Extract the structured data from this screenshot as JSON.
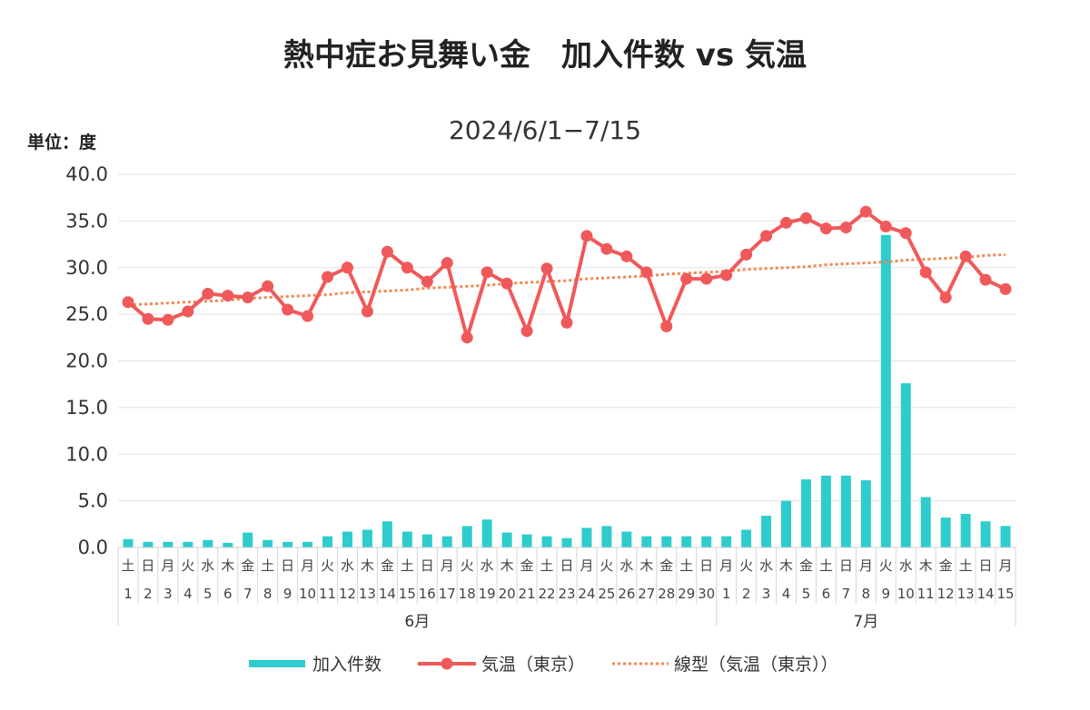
{
  "chart_data": {
    "type": "bar+line",
    "title": "熱中症お見舞い金　加入件数 vs 気温",
    "subtitle": "2024/6/1−7/15",
    "unit_label": "単位：度",
    "ylim": [
      0,
      40
    ],
    "yticks": [
      "0.0",
      "5.0",
      "10.0",
      "15.0",
      "20.0",
      "25.0",
      "30.0",
      "35.0",
      "40.0"
    ],
    "grid": true,
    "legend_position": "bottom",
    "months": [
      {
        "label": "6月",
        "start": 0,
        "end": 29
      },
      {
        "label": "7月",
        "start": 30,
        "end": 44
      }
    ],
    "categories": [
      {
        "weekday": "土",
        "day": "1"
      },
      {
        "weekday": "日",
        "day": "2"
      },
      {
        "weekday": "月",
        "day": "3"
      },
      {
        "weekday": "火",
        "day": "4"
      },
      {
        "weekday": "水",
        "day": "5"
      },
      {
        "weekday": "木",
        "day": "6"
      },
      {
        "weekday": "金",
        "day": "7"
      },
      {
        "weekday": "土",
        "day": "8"
      },
      {
        "weekday": "日",
        "day": "9"
      },
      {
        "weekday": "月",
        "day": "10"
      },
      {
        "weekday": "火",
        "day": "11"
      },
      {
        "weekday": "水",
        "day": "12"
      },
      {
        "weekday": "木",
        "day": "13"
      },
      {
        "weekday": "金",
        "day": "14"
      },
      {
        "weekday": "土",
        "day": "15"
      },
      {
        "weekday": "日",
        "day": "16"
      },
      {
        "weekday": "月",
        "day": "17"
      },
      {
        "weekday": "火",
        "day": "18"
      },
      {
        "weekday": "水",
        "day": "19"
      },
      {
        "weekday": "木",
        "day": "20"
      },
      {
        "weekday": "金",
        "day": "21"
      },
      {
        "weekday": "土",
        "day": "22"
      },
      {
        "weekday": "日",
        "day": "23"
      },
      {
        "weekday": "月",
        "day": "24"
      },
      {
        "weekday": "火",
        "day": "25"
      },
      {
        "weekday": "水",
        "day": "26"
      },
      {
        "weekday": "木",
        "day": "27"
      },
      {
        "weekday": "金",
        "day": "28"
      },
      {
        "weekday": "土",
        "day": "29"
      },
      {
        "weekday": "日",
        "day": "30"
      },
      {
        "weekday": "月",
        "day": "1"
      },
      {
        "weekday": "火",
        "day": "2"
      },
      {
        "weekday": "水",
        "day": "3"
      },
      {
        "weekday": "木",
        "day": "4"
      },
      {
        "weekday": "金",
        "day": "5"
      },
      {
        "weekday": "土",
        "day": "6"
      },
      {
        "weekday": "日",
        "day": "7"
      },
      {
        "weekday": "月",
        "day": "8"
      },
      {
        "weekday": "火",
        "day": "9"
      },
      {
        "weekday": "水",
        "day": "10"
      },
      {
        "weekday": "木",
        "day": "11"
      },
      {
        "weekday": "金",
        "day": "12"
      },
      {
        "weekday": "土",
        "day": "13"
      },
      {
        "weekday": "日",
        "day": "14"
      },
      {
        "weekday": "月",
        "day": "15"
      }
    ],
    "series": [
      {
        "name": "加入件数",
        "type": "bar",
        "color": "#2ecccc",
        "values": [
          0.9,
          0.6,
          0.6,
          0.6,
          0.8,
          0.5,
          1.6,
          0.8,
          0.6,
          0.6,
          1.2,
          1.7,
          1.9,
          2.8,
          1.7,
          1.4,
          1.2,
          2.3,
          3.0,
          1.6,
          1.4,
          1.2,
          1.0,
          2.1,
          2.3,
          1.7,
          1.2,
          1.2,
          1.2,
          1.2,
          1.2,
          1.9,
          3.4,
          5.0,
          7.3,
          7.7,
          7.7,
          7.2,
          33.5,
          17.6,
          5.4,
          3.2,
          3.6,
          2.8,
          2.3
        ]
      },
      {
        "name": "気温（東京）",
        "type": "line",
        "color": "#f0595a",
        "values": [
          26.3,
          24.5,
          24.4,
          25.3,
          27.2,
          27.0,
          26.8,
          28.0,
          25.5,
          24.8,
          29.0,
          30.0,
          25.3,
          31.7,
          30.0,
          28.5,
          30.5,
          22.5,
          29.5,
          28.3,
          23.2,
          29.9,
          24.1,
          33.4,
          32.0,
          31.2,
          29.5,
          23.7,
          28.8,
          28.8,
          29.2,
          31.4,
          33.4,
          34.8,
          35.3,
          34.2,
          34.3,
          36.0,
          34.4,
          33.7,
          29.5,
          26.8,
          31.2,
          28.7,
          27.7
        ]
      },
      {
        "name": "線型（気温（東京））",
        "type": "trendline",
        "color": "#f4884f",
        "values": [
          26.0,
          26.1,
          26.2,
          26.3,
          26.4,
          26.5,
          26.7,
          26.8,
          26.9,
          27.0,
          27.1,
          27.3,
          27.4,
          27.5,
          27.6,
          27.8,
          27.9,
          28.0,
          28.1,
          28.3,
          28.4,
          28.5,
          28.6,
          28.8,
          28.9,
          29.0,
          29.1,
          29.3,
          29.4,
          29.5,
          29.6,
          29.8,
          29.9,
          30.0,
          30.1,
          30.3,
          30.4,
          30.5,
          30.6,
          30.8,
          30.9,
          31.0,
          31.1,
          31.3,
          31.4
        ]
      }
    ]
  }
}
